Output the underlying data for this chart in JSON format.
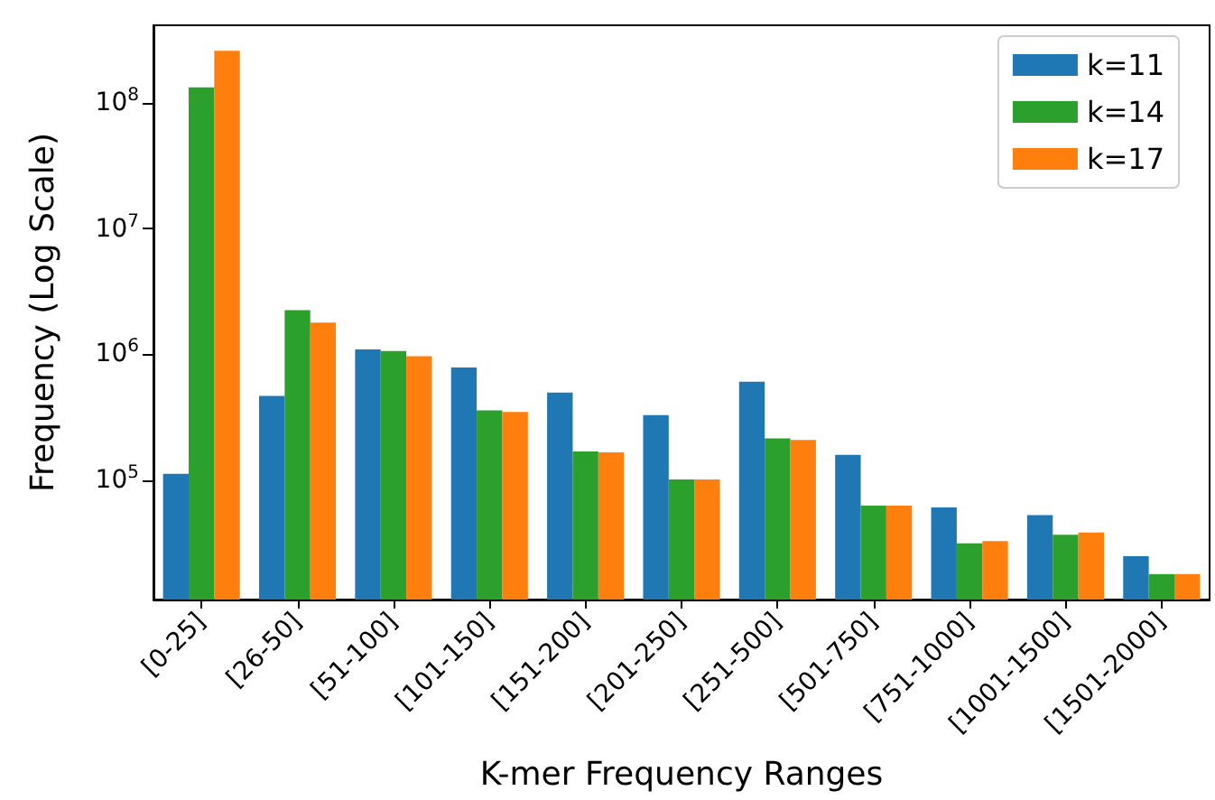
{
  "chart_data": {
    "type": "bar",
    "xlabel": "K-mer Frequency Ranges",
    "ylabel": "Frequency (Log Scale)",
    "categories": [
      "[0-25]",
      "[26-50]",
      "[51-100]",
      "[101-150]",
      "[151-200]",
      "[201-250]",
      "[251-500]",
      "[501-750]",
      "[751-1000]",
      "[1001-1500]",
      "[1501-2000]"
    ],
    "series": [
      {
        "name": "k=11",
        "color": "#1f77b4",
        "values": [
          113000,
          470000,
          1100000,
          790000,
          500000,
          330000,
          610000,
          160000,
          61000,
          53000,
          25000
        ]
      },
      {
        "name": "k=14",
        "color": "#2ca02c",
        "values": [
          133000000,
          2260000,
          1070000,
          360000,
          170000,
          102000,
          216000,
          63000,
          31600,
          37000,
          18000
        ]
      },
      {
        "name": "k=17",
        "color": "#ff7f0e",
        "values": [
          260000000,
          1800000,
          970000,
          350000,
          167000,
          102000,
          210000,
          63000,
          33000,
          38500,
          18000
        ]
      }
    ],
    "log": "y",
    "ylim": [
      11300,
      415000000
    ],
    "yticks": [
      {
        "value": 100000,
        "label": "10$^{5}$"
      },
      {
        "value": 1000000,
        "label": "10$^{6}$"
      },
      {
        "value": 10000000,
        "label": "10$^{7}$"
      },
      {
        "value": 100000000,
        "label": "10$^{8}$"
      }
    ],
    "grid": false,
    "legend": "top right"
  }
}
